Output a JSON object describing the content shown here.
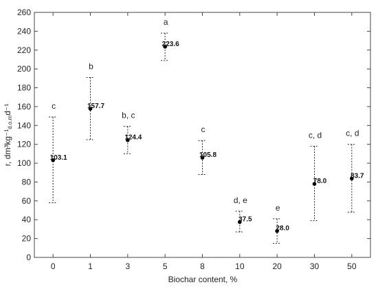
{
  "chart_data": {
    "type": "scatter",
    "xlabel": "Biochar content, %",
    "ylabel": "r, dm³kg⁻¹d.o.md⁻¹",
    "ylim": [
      0,
      260
    ],
    "yticks": [
      0,
      20,
      40,
      60,
      80,
      100,
      120,
      140,
      160,
      180,
      200,
      220,
      240,
      260
    ],
    "categories": [
      "0",
      "1",
      "3",
      "5",
      "8",
      "10",
      "20",
      "30",
      "50"
    ],
    "values": [
      103.1,
      157.7,
      124.4,
      223.6,
      105.8,
      37.5,
      28.0,
      78.0,
      83.7
    ],
    "value_labels": [
      "103.1",
      "157.7",
      "124.4",
      "223.6",
      "105.8",
      "37.5",
      "28.0",
      "78.0",
      "83.7"
    ],
    "error_low": [
      58,
      125,
      110,
      209,
      88,
      27,
      15,
      39,
      48
    ],
    "error_high": [
      149,
      191,
      139,
      238,
      124,
      49,
      41,
      118,
      120
    ],
    "group_labels": [
      "c",
      "b",
      "b, c",
      "a",
      "c",
      "d, e",
      "e",
      "c, d",
      "c, d"
    ],
    "grid": false,
    "marker_color": "#000000"
  }
}
